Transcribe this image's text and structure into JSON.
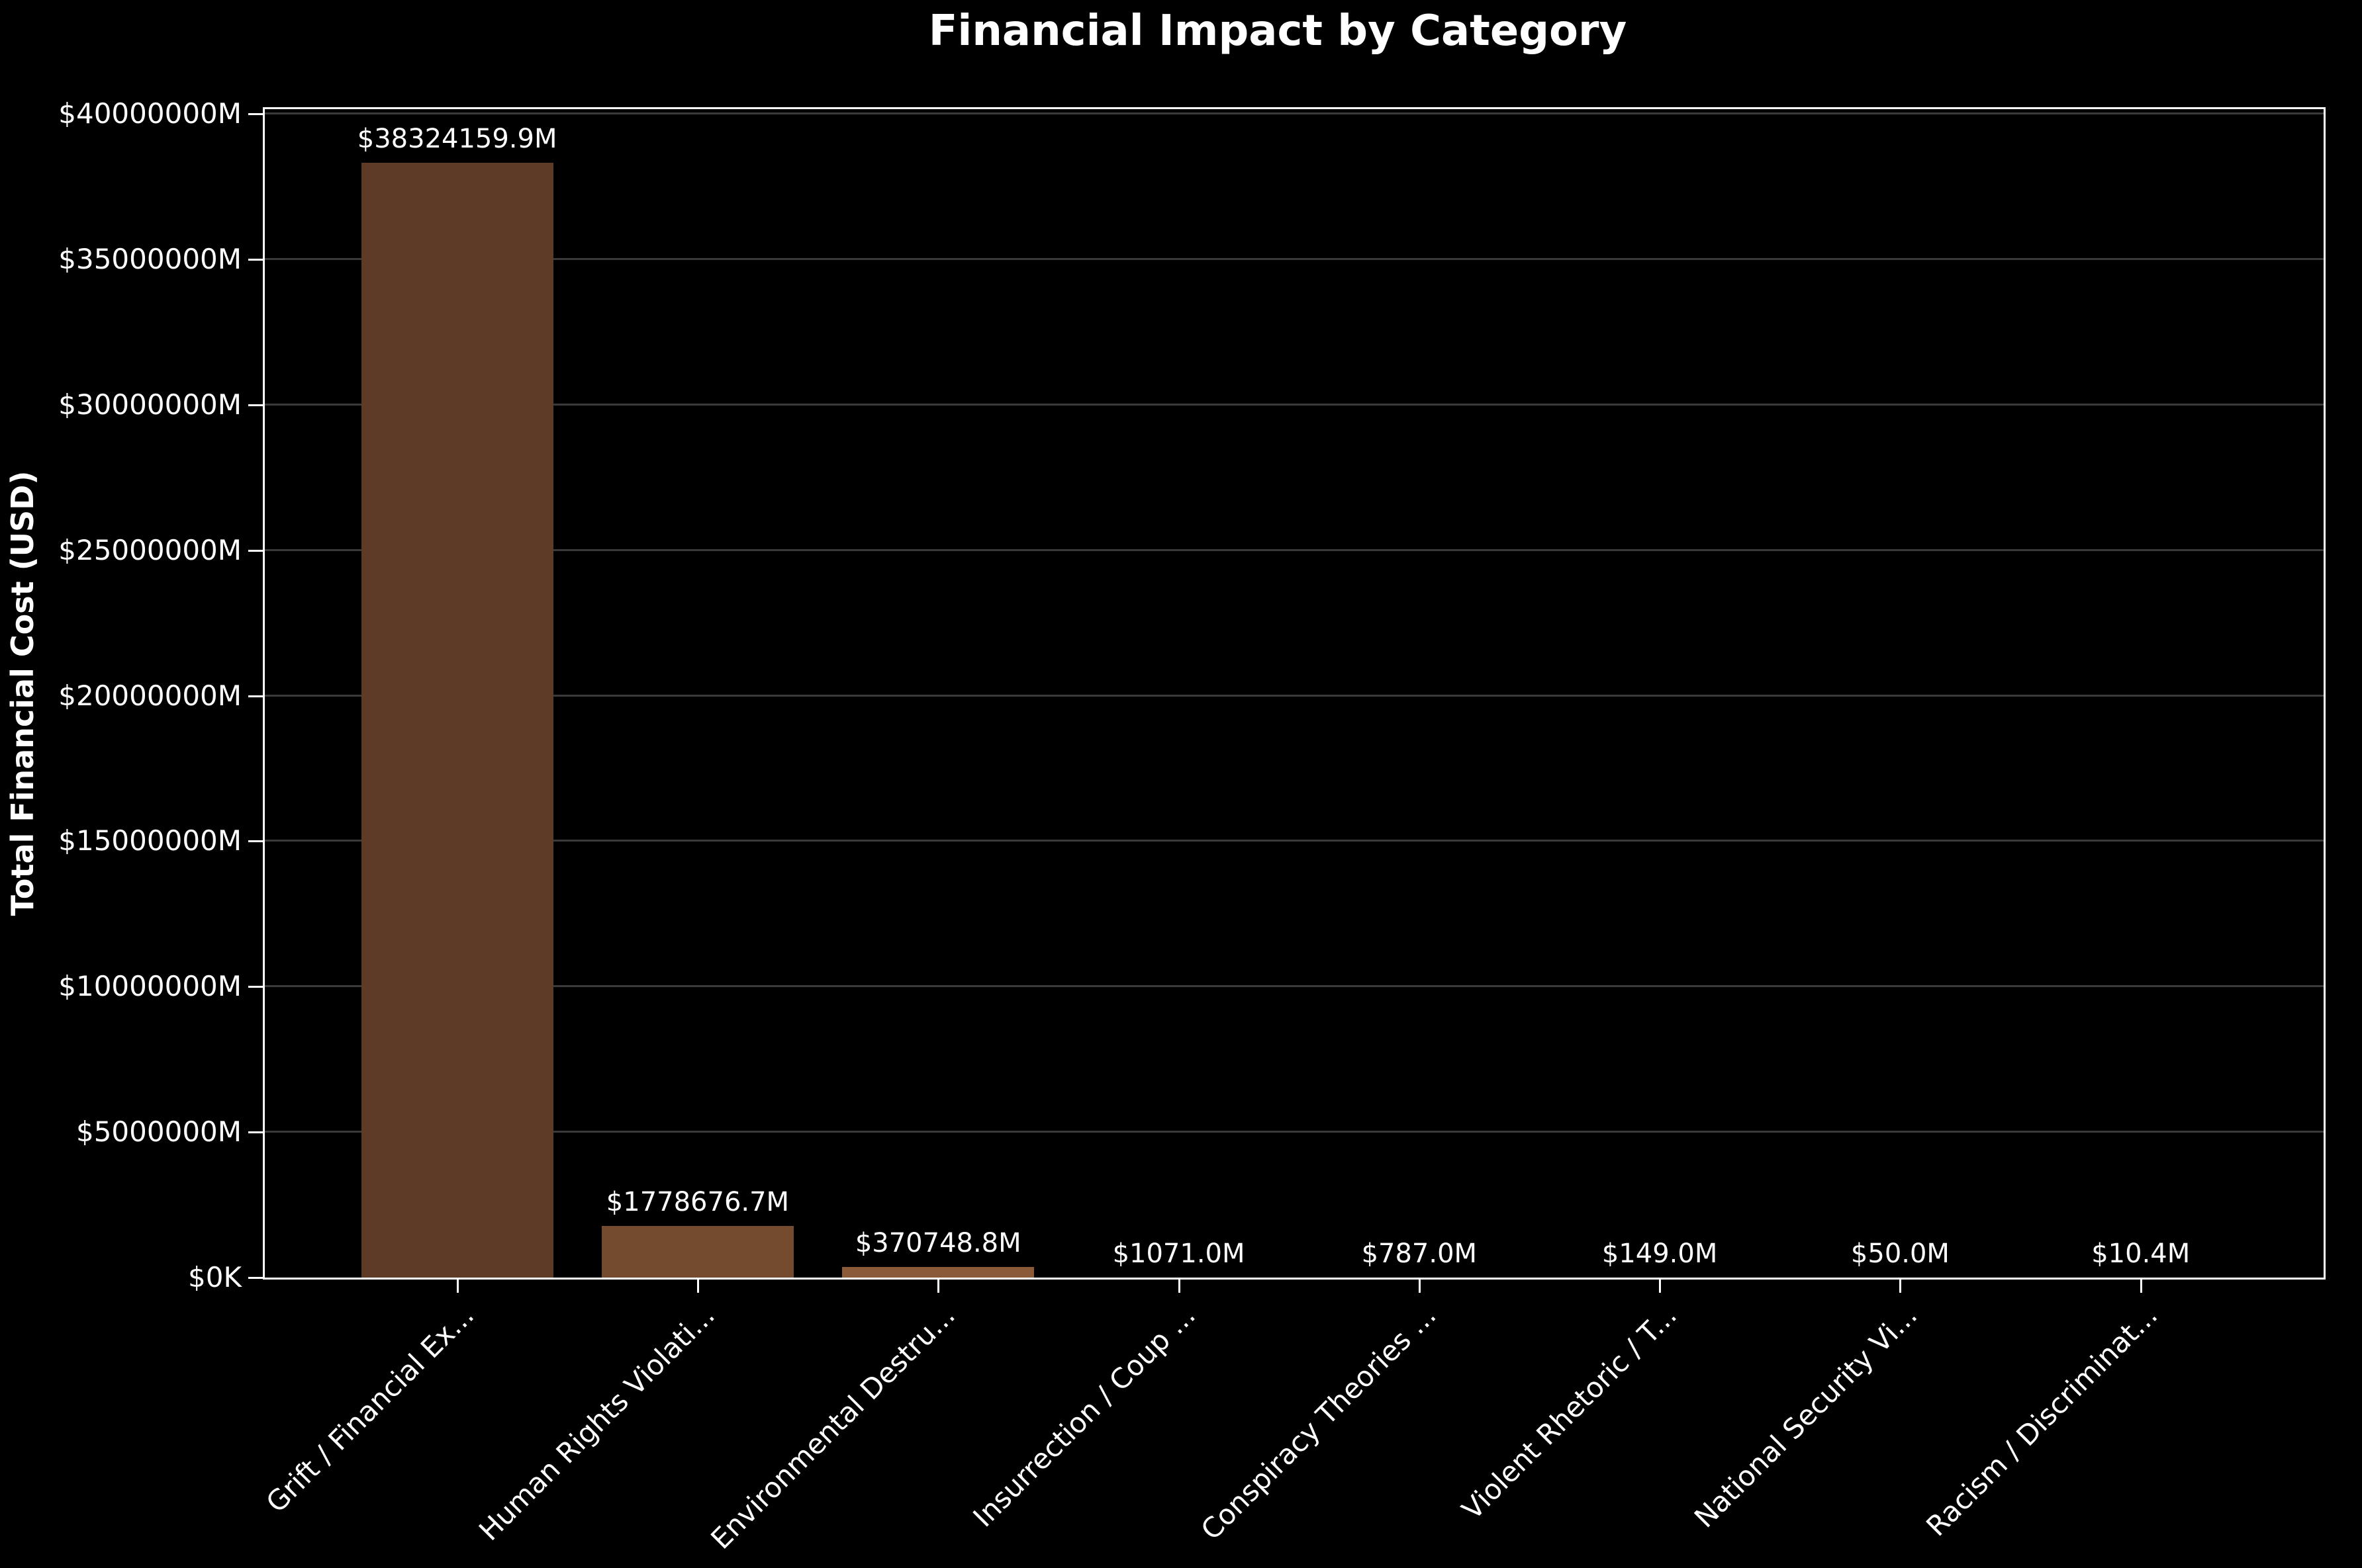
{
  "title": "Financial Impact by Category",
  "chart_data": {
    "type": "bar",
    "title": "Financial Impact by Category",
    "xlabel": "",
    "ylabel": "Total Financial Cost (USD)",
    "categories": [
      "Grift / Financial Ex...",
      "Human Rights Violati...",
      "Environmental Destru...",
      "Insurrection / Coup ...",
      "Conspiracy Theories ...",
      "Violent Rhetoric / T...",
      "National Security Vi...",
      "Racism / Discriminat..."
    ],
    "values": [
      38324159.9,
      1778676.7,
      370748.8,
      1071.0,
      787.0,
      149.0,
      50.0,
      10.4
    ],
    "value_labels": [
      "$38324159.9M",
      "$1778676.7M",
      "$370748.8M",
      "$1071.0M",
      "$787.0M",
      "$149.0M",
      "$50.0M",
      "$10.4M"
    ],
    "units": "millions USD",
    "ylim": [
      0,
      40000000
    ],
    "ytick_interval": 5000000,
    "ytick_labels": [
      "$0K",
      "$5000000M",
      "$10000000M",
      "$15000000M",
      "$20000000M",
      "$25000000M",
      "$30000000M",
      "$35000000M",
      "$40000000M"
    ],
    "grid": "horizontal",
    "legend": "none",
    "xtick_rotation_deg": 45,
    "bar_colors": [
      "#5e3b26",
      "#744b2e",
      "#8b5a38",
      "#a0693f",
      "#b47847",
      "#c8884f",
      "#d79757",
      "#e2a660"
    ],
    "colors": {
      "background": "#000000",
      "text": "#ffffff",
      "spine": "#ffffff",
      "gridline": "#3a3a3a"
    }
  }
}
